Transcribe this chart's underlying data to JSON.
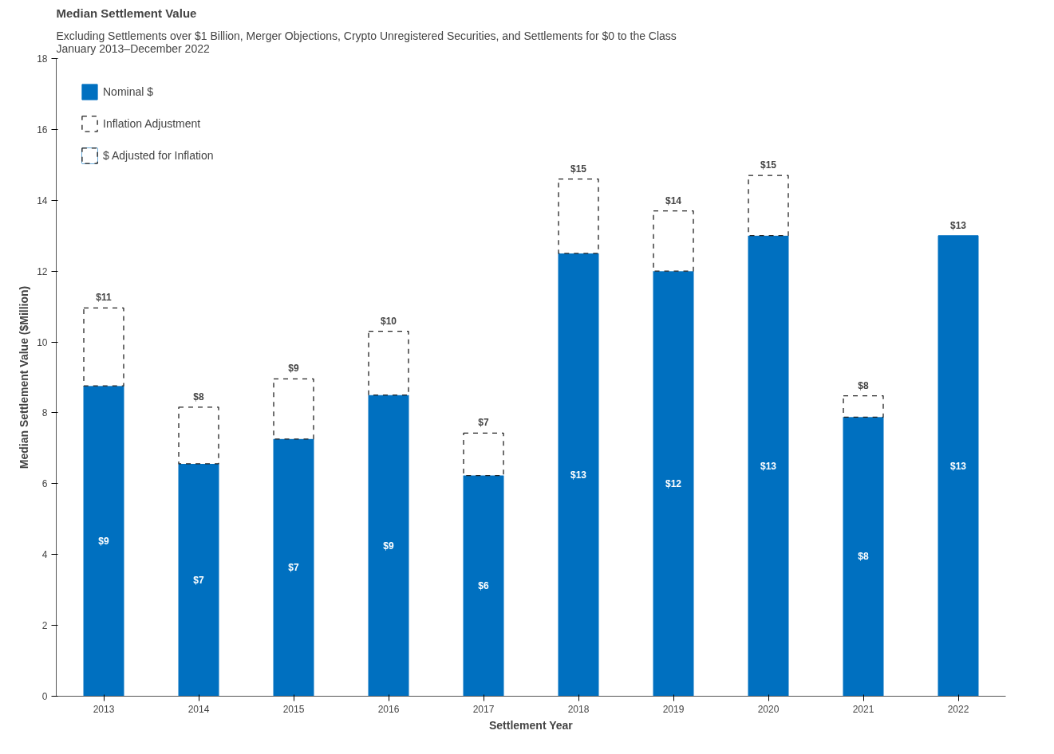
{
  "chart_data": {
    "type": "bar",
    "title": "Median Settlement Value",
    "subtitle": "Excluding Settlements over $1 Billion, Merger Objections, Crypto Unregistered Securities, and Settlements for $0 to the Class\nJanuary 2013–December 2022",
    "xlabel": "Settlement Year",
    "ylabel": "Median Settlement Value ($Million)",
    "categories": [
      "2013",
      "2014",
      "2015",
      "2016",
      "2017",
      "2018",
      "2019",
      "2020",
      "2021",
      "2022"
    ],
    "stacked": true,
    "series": [
      {
        "name": "Nominal $",
        "color": "#0070c0",
        "values": [
          8.76,
          6.56,
          7.26,
          8.5,
          6.23,
          12.5,
          12.0,
          13.0,
          7.88,
          13.0
        ],
        "value_labels": [
          "$9",
          "$7",
          "$7",
          "$9",
          "$6",
          "$13",
          "$12",
          "$13",
          "$8",
          "$13"
        ]
      },
      {
        "name": "Inflation Adjustment",
        "color": "#ffffff",
        "line_style": "dashed",
        "values": [
          2.2,
          1.6,
          1.7,
          1.8,
          1.2,
          2.1,
          1.7,
          1.7,
          0.6,
          0
        ]
      }
    ],
    "totals": [
      "$11",
      "$8",
      "$9",
      "$10",
      "$7",
      "$15",
      "$14",
      "$15",
      "$8",
      "$13"
    ],
    "annotations": [
      "$ Adjusted for Inflation"
    ],
    "ylim": [
      0,
      18
    ],
    "yticks": [
      0,
      2,
      4,
      6,
      8,
      10,
      12,
      14,
      16,
      18
    ],
    "grid": false,
    "legend": "top left"
  }
}
